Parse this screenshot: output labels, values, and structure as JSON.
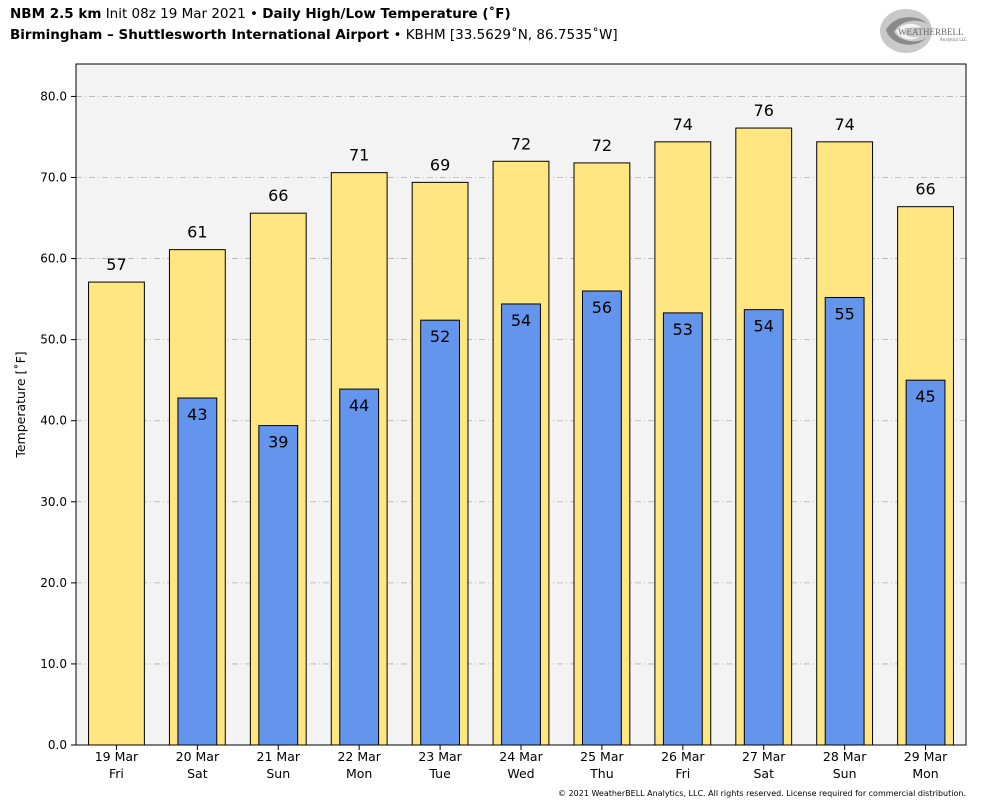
{
  "header": {
    "model": "NBM 2.5 km",
    "init": "Init 08z 19 Mar 2021",
    "bullet": "•",
    "title": "Daily High/Low Temperature (˚F)",
    "station": "Birmingham – Shuttlesworth International Airport",
    "station_id": "KBHM [33.5629˚N, 86.7535˚W]"
  },
  "logo": {
    "text": "WEATHERBELL",
    "subtext": "Analytics LLC"
  },
  "copyright": "© 2021 WeatherBELL Analytics, LLC. All rights reserved. License required for commercial distribution.",
  "colors": {
    "high": "#ffe680",
    "low": "#6495ed",
    "plot_bg": "#f3f3f3",
    "grid": "#b0b0b0"
  },
  "chart_data": {
    "type": "bar",
    "ylabel": "Temperature [˚F]",
    "ylim": [
      0,
      84
    ],
    "yticks": [
      "0.0",
      "10.0",
      "20.0",
      "30.0",
      "40.0",
      "50.0",
      "60.0",
      "70.0",
      "80.0"
    ],
    "grid": true,
    "categories": [
      {
        "date": "19 Mar",
        "day": "Fri"
      },
      {
        "date": "20 Mar",
        "day": "Sat"
      },
      {
        "date": "21 Mar",
        "day": "Sun"
      },
      {
        "date": "22 Mar",
        "day": "Mon"
      },
      {
        "date": "23 Mar",
        "day": "Tue"
      },
      {
        "date": "24 Mar",
        "day": "Wed"
      },
      {
        "date": "25 Mar",
        "day": "Thu"
      },
      {
        "date": "26 Mar",
        "day": "Fri"
      },
      {
        "date": "27 Mar",
        "day": "Sat"
      },
      {
        "date": "28 Mar",
        "day": "Sun"
      },
      {
        "date": "29 Mar",
        "day": "Mon"
      }
    ],
    "series": [
      {
        "key": "high",
        "values": [
          57.1,
          61.1,
          65.6,
          70.6,
          69.4,
          72.0,
          71.8,
          74.4,
          76.1,
          74.4,
          66.4
        ],
        "labels": [
          "57",
          "61",
          "66",
          "71",
          "69",
          "72",
          "72",
          "74",
          "76",
          "74",
          "66"
        ]
      },
      {
        "key": "low",
        "values": [
          null,
          42.8,
          39.4,
          43.9,
          52.4,
          54.4,
          56.0,
          53.3,
          53.7,
          55.2,
          45.0
        ],
        "labels": [
          "",
          "43",
          "39",
          "44",
          "52",
          "54",
          "56",
          "53",
          "54",
          "55",
          "45"
        ]
      }
    ]
  }
}
